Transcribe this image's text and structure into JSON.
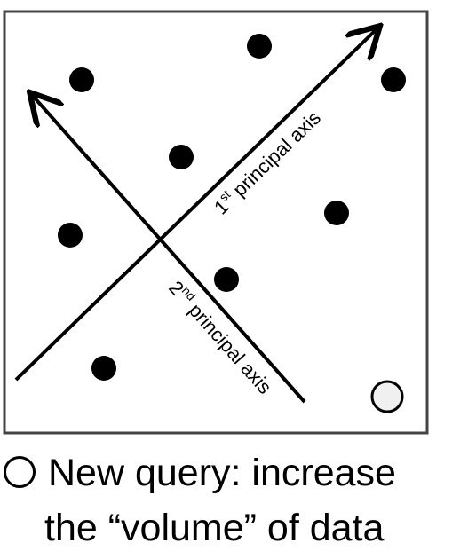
{
  "diagram": {
    "axis_1_label": "1st principal axis",
    "axis_1_label_main": "1",
    "axis_1_label_sup": "st",
    "axis_1_label_rest": " principal axis",
    "axis_2_label_main": "2",
    "axis_2_label_sup": "nd",
    "axis_2_label_rest": " principal axis",
    "point_color": "#000000",
    "query_point_color": "#f0f0f0"
  },
  "caption": {
    "line_1": "New query: increase",
    "line_2": "the “volume” of data"
  }
}
